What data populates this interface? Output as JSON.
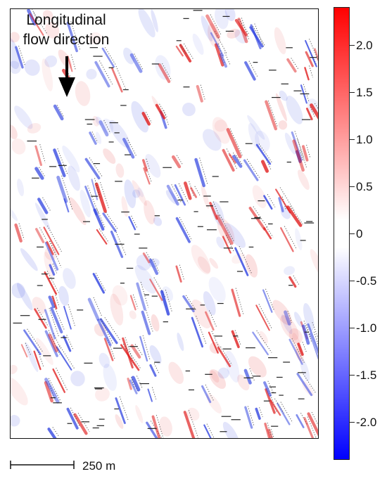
{
  "annotation": {
    "line1": "Longitudinal",
    "line2": "flow direction",
    "arrow_icon": "down-arrow-icon"
  },
  "colorbar": {
    "ticks": [
      "2.0",
      "1.5",
      "1.0",
      "0.5",
      "0",
      "-0.5",
      "-1.0",
      "-1.5",
      "-2.0"
    ],
    "tick_values": [
      2.0,
      1.5,
      1.0,
      0.5,
      0,
      -0.5,
      -1.0,
      -1.5,
      -2.0
    ],
    "range": [
      -2.4,
      2.4
    ],
    "colors": {
      "max": "#ff0000",
      "mid": "#ffffff",
      "min": "#0000ff"
    }
  },
  "scale_bar": {
    "label": "250 m"
  },
  "colors": {
    "positive": "#e01a1a",
    "negative": "#2b3fe0",
    "contour": "#333333",
    "frame": "#111111"
  }
}
